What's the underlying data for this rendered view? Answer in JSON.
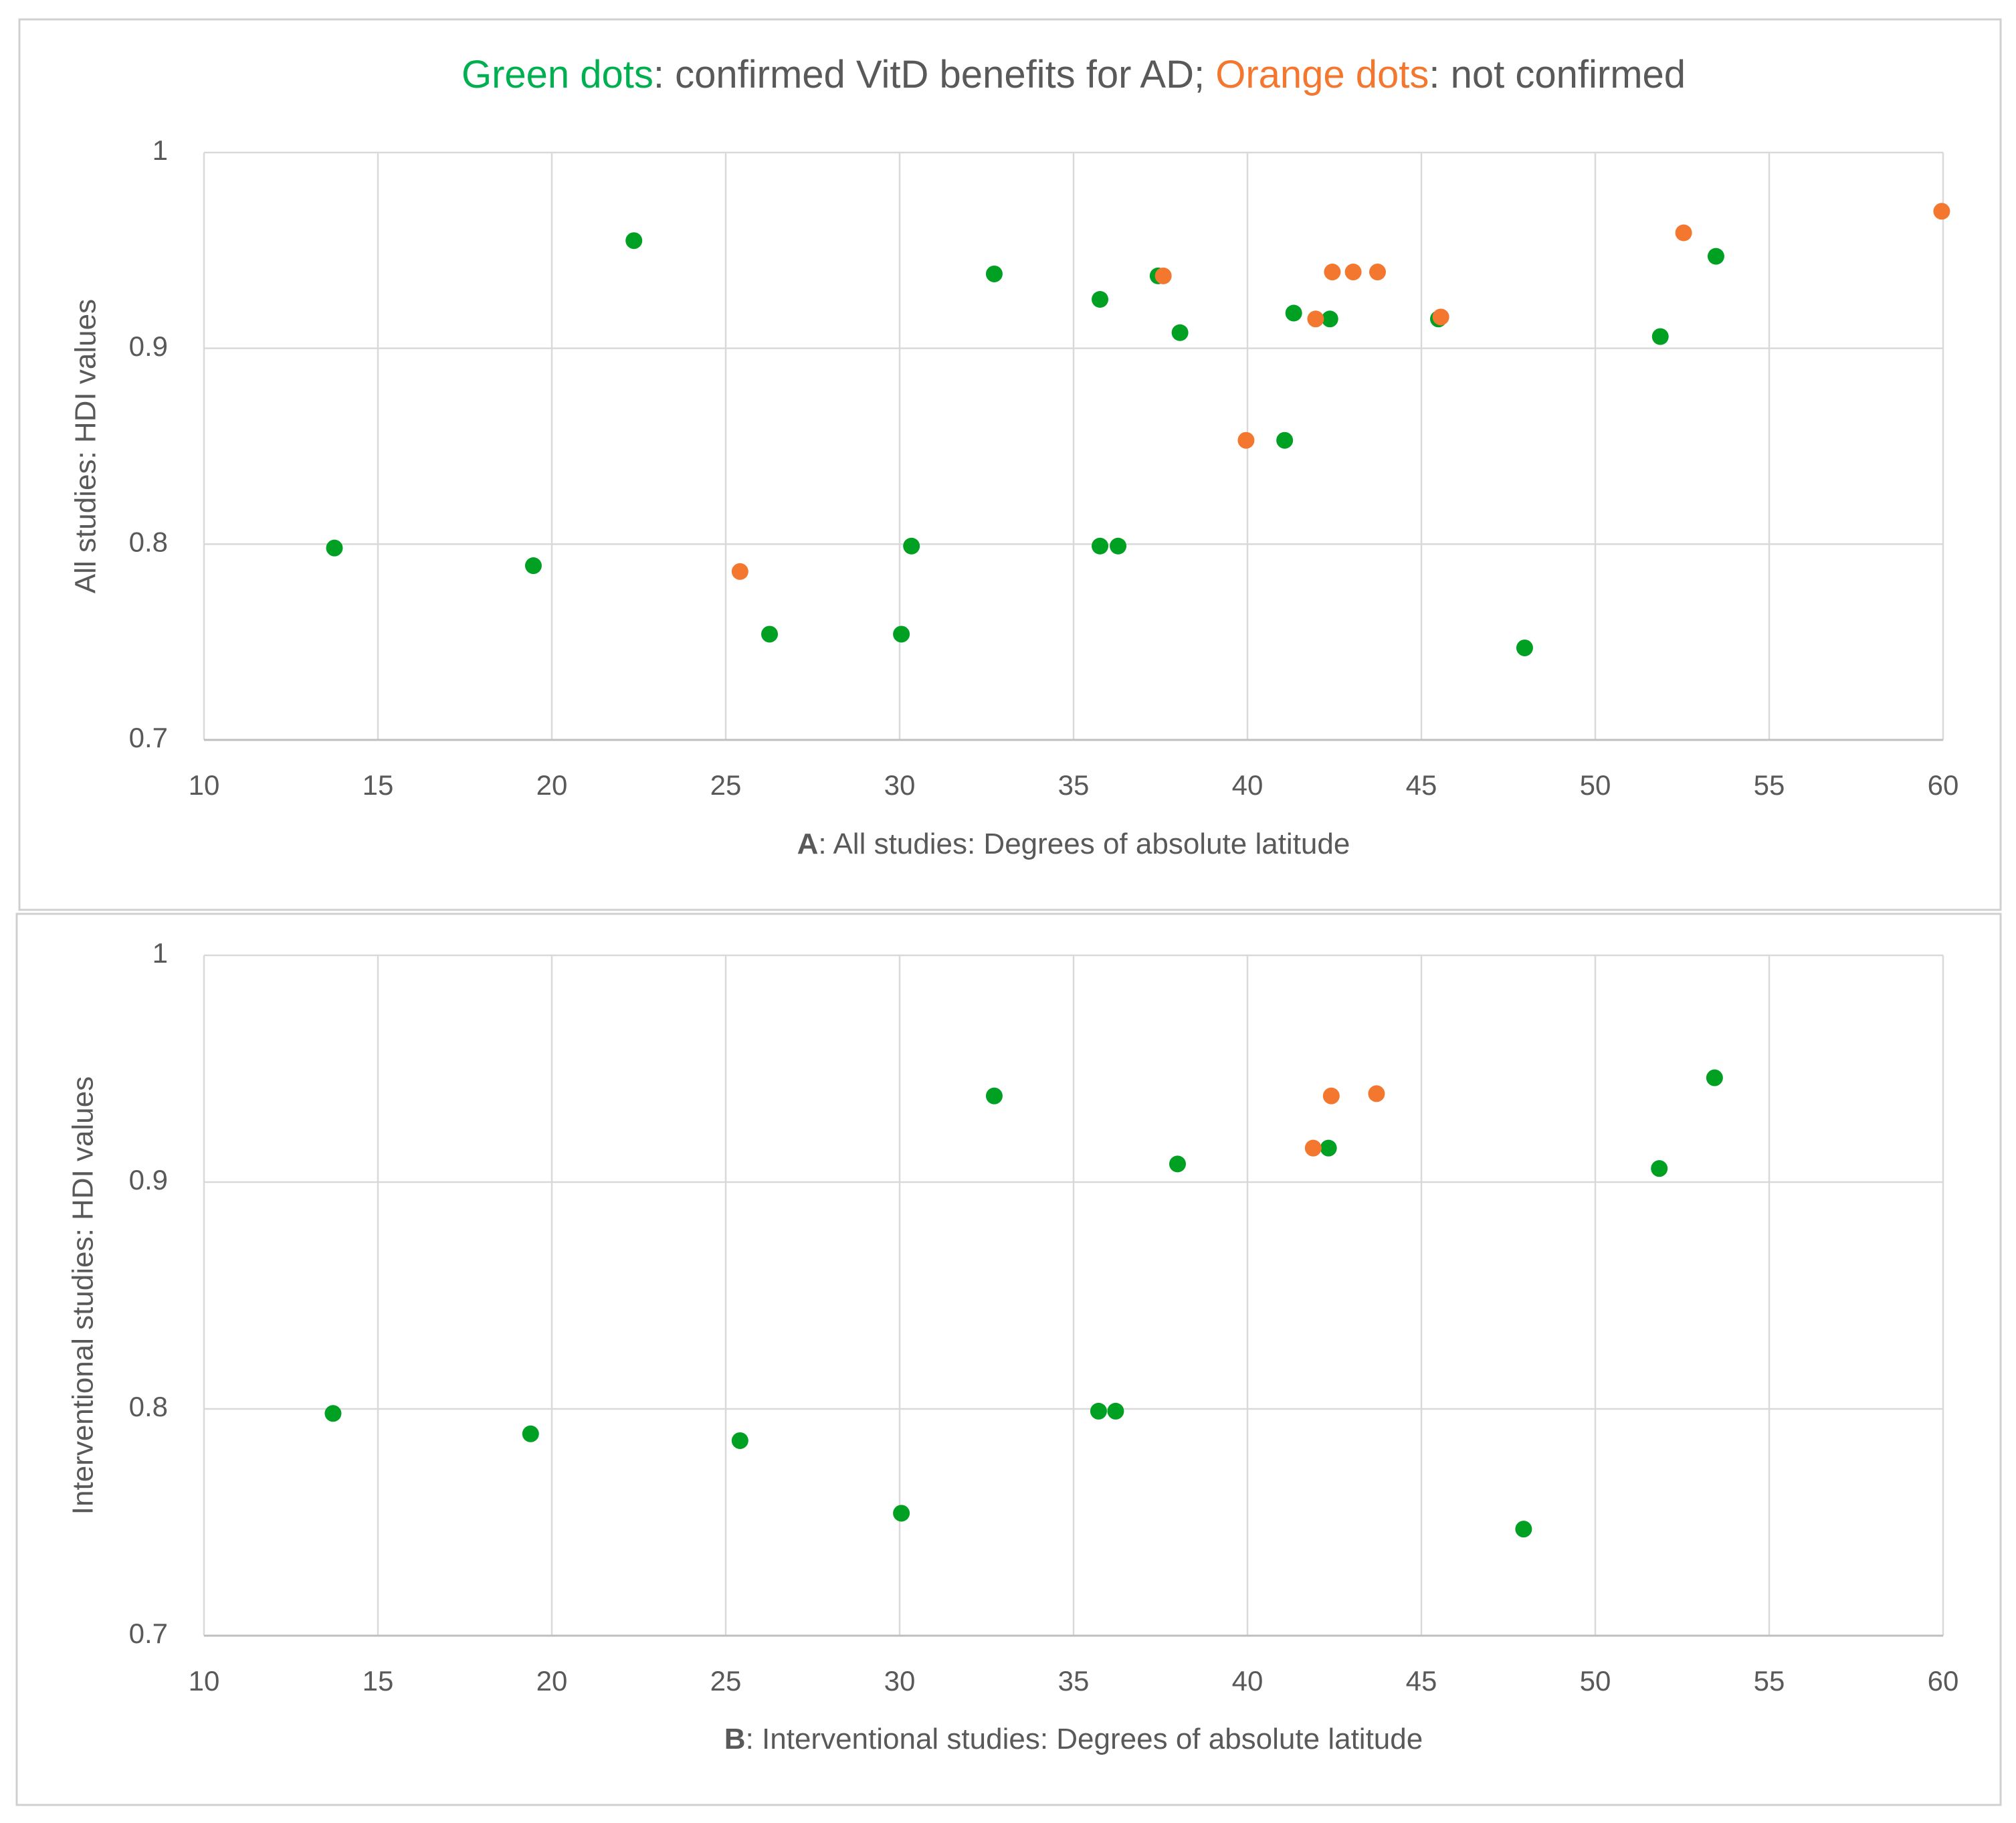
{
  "title": [
    {
      "text": "Green dots",
      "color": "#00b050"
    },
    {
      "text": ": confirmed VitD benefits for AD; ",
      "color": "#595959"
    },
    {
      "text": "Orange dots",
      "color": "#f4772f"
    },
    {
      "text": ": not confirmed",
      "color": "#595959"
    }
  ],
  "chart_data": [
    {
      "type": "scatter",
      "xlabel": [
        {
          "text": "A",
          "bold": true
        },
        {
          "text": ": All studies: Degrees of absolute latitude",
          "bold": false
        }
      ],
      "ylabel": "All studies: HDI values",
      "xlim": [
        10,
        60
      ],
      "xticks": [
        10,
        15,
        20,
        25,
        30,
        35,
        40,
        45,
        50,
        55,
        60
      ],
      "ylim": [
        0.7,
        1
      ],
      "yticks": [
        0.7,
        0.8,
        0.9,
        1
      ],
      "grid": true,
      "series": [
        {
          "color": "#00a023",
          "x": [
            13.75,
            19.47,
            22.36,
            26.26,
            30.05,
            30.34,
            32.72,
            35.76,
            35.76,
            36.28,
            37.43,
            38.06,
            41.07,
            41.33,
            42.37,
            45.49,
            47.97,
            51.87,
            53.47
          ],
          "y": [
            0.798,
            0.789,
            0.955,
            0.754,
            0.754,
            0.799,
            0.938,
            0.925,
            0.799,
            0.799,
            0.937,
            0.908,
            0.853,
            0.918,
            0.915,
            0.915,
            0.747,
            0.906,
            0.947
          ]
        },
        {
          "color": "#f4772f",
          "x": [
            25.41,
            37.58,
            39.96,
            41.96,
            42.44,
            43.04,
            43.74,
            45.56,
            52.54,
            59.96
          ],
          "y": [
            0.786,
            0.937,
            0.853,
            0.915,
            0.939,
            0.939,
            0.939,
            0.916,
            0.959,
            0.97
          ]
        }
      ]
    },
    {
      "type": "scatter",
      "xlabel": [
        {
          "text": "B",
          "bold": true
        },
        {
          "text": ": Interventional studies: Degrees of absolute latitude",
          "bold": false
        }
      ],
      "ylabel": "Interventional studies: HDI values",
      "xlim": [
        10,
        60
      ],
      "xticks": [
        10,
        15,
        20,
        25,
        30,
        35,
        40,
        45,
        50,
        55,
        60
      ],
      "ylim": [
        0.7,
        1
      ],
      "yticks": [
        0.7,
        0.8,
        0.9,
        1
      ],
      "grid": true,
      "series": [
        {
          "color": "#00a023",
          "x": [
            13.71,
            19.39,
            25.41,
            30.05,
            32.72,
            35.72,
            36.21,
            37.99,
            42.33,
            47.94,
            51.84,
            53.43
          ],
          "y": [
            0.798,
            0.789,
            0.786,
            0.754,
            0.938,
            0.799,
            0.799,
            0.908,
            0.915,
            0.747,
            0.906,
            0.946
          ]
        },
        {
          "color": "#f4772f",
          "x": [
            41.89,
            42.41,
            43.71
          ],
          "y": [
            0.915,
            0.938,
            0.939
          ]
        }
      ]
    }
  ]
}
